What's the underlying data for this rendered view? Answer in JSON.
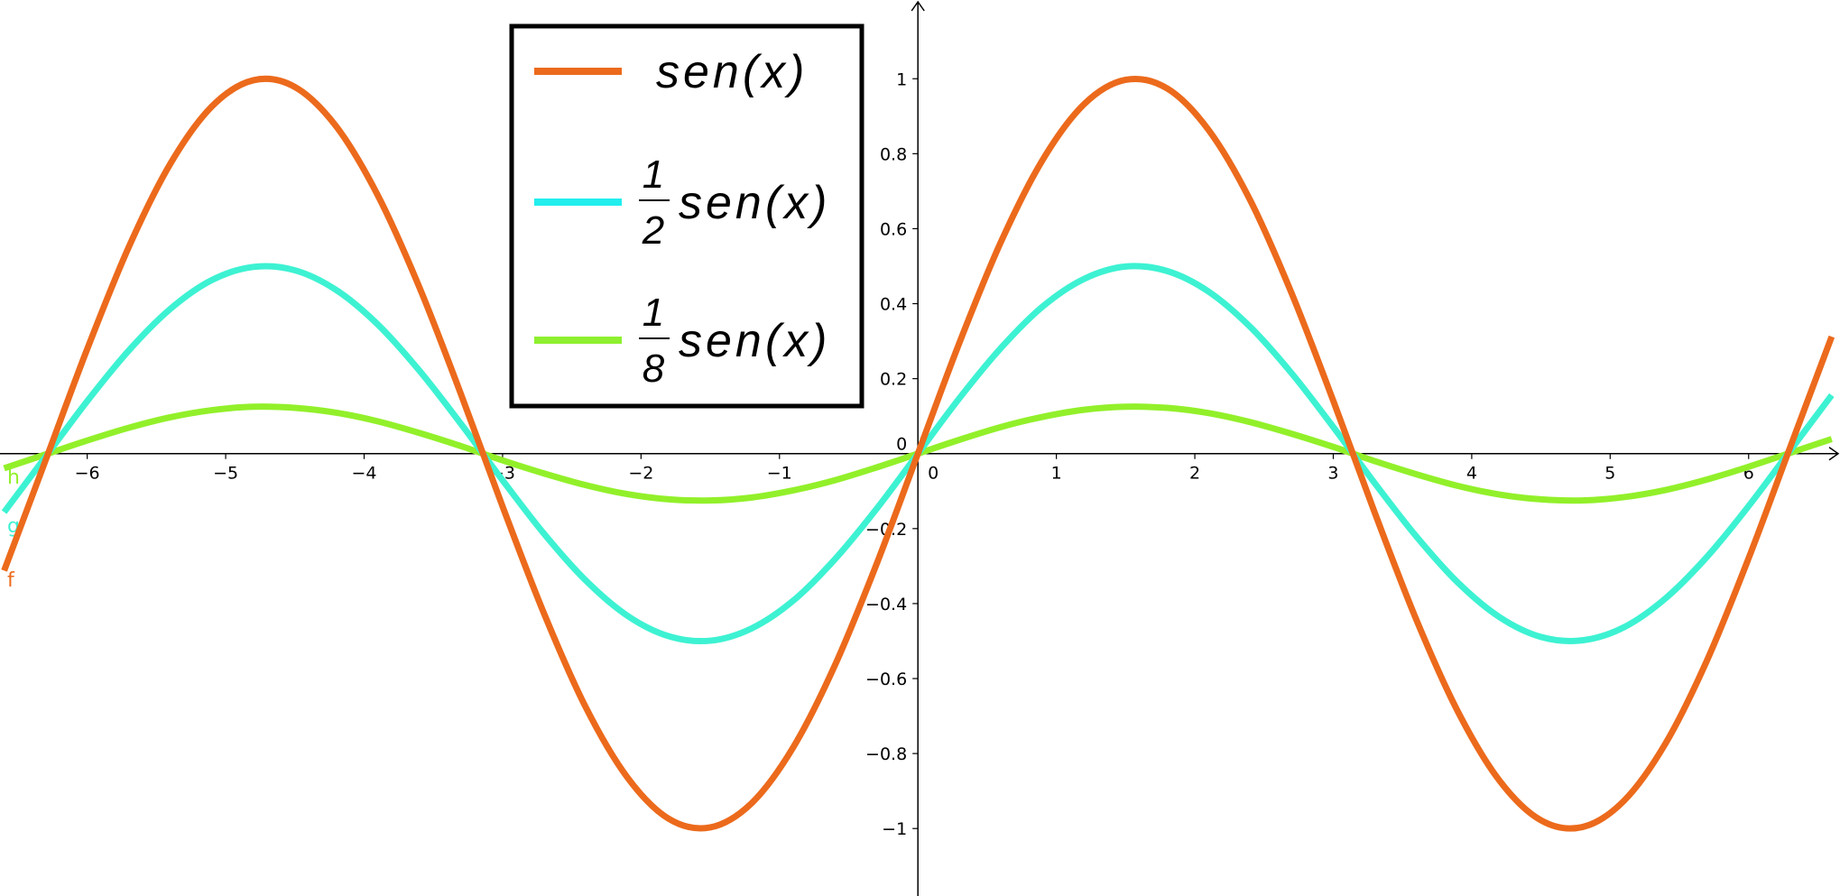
{
  "chart_data": {
    "type": "line",
    "x": [
      -6.6,
      -6.3,
      -6,
      -5.7,
      -5.4,
      -5.1,
      -4.8,
      -4.5,
      -4.2,
      -3.9,
      -3.6,
      -3.3,
      -3,
      -2.7,
      -2.4,
      -2.1,
      -1.8,
      -1.5,
      -1.2,
      -0.9,
      -0.6,
      -0.3,
      0,
      0.3,
      0.6,
      0.9,
      1.2,
      1.5,
      1.8,
      2.1,
      2.4,
      2.7,
      3,
      3.3,
      3.6,
      3.9,
      4.2,
      4.5,
      4.8,
      5.1,
      5.4,
      5.7,
      6,
      6.3,
      6.6
    ],
    "series": [
      {
        "name": "sen(x)",
        "label": "f",
        "color": "#ec6a1c",
        "values": [
          -0.312,
          -0.017,
          0.279,
          0.551,
          0.773,
          0.926,
          0.996,
          0.978,
          0.872,
          0.688,
          0.443,
          0.158,
          -0.141,
          -0.427,
          -0.676,
          -0.863,
          -0.974,
          -0.997,
          -0.932,
          -0.783,
          -0.565,
          -0.296,
          0,
          0.296,
          0.565,
          0.783,
          0.932,
          0.997,
          0.974,
          0.863,
          0.676,
          0.427,
          0.141,
          -0.158,
          -0.443,
          -0.688,
          -0.872,
          -0.978,
          -0.996,
          -0.926,
          -0.773,
          -0.551,
          -0.279,
          0.017,
          0.312
        ]
      },
      {
        "name": "sen(x)",
        "coefficient": {
          "numerator": "1",
          "denominator": "2"
        },
        "label": "g",
        "color": "#3df2d2",
        "values": [
          -0.156,
          -0.008,
          0.14,
          0.275,
          0.386,
          0.463,
          0.498,
          0.489,
          0.436,
          0.344,
          0.221,
          0.079,
          -0.071,
          -0.214,
          -0.338,
          -0.432,
          -0.487,
          -0.499,
          -0.466,
          -0.392,
          -0.282,
          -0.148,
          0,
          0.148,
          0.282,
          0.392,
          0.466,
          0.499,
          0.487,
          0.432,
          0.338,
          0.214,
          0.071,
          -0.079,
          -0.221,
          -0.344,
          -0.436,
          -0.489,
          -0.498,
          -0.463,
          -0.386,
          -0.275,
          -0.14,
          0.008,
          0.156
        ]
      },
      {
        "name": "sen(x)",
        "coefficient": {
          "numerator": "1",
          "denominator": "8"
        },
        "label": "h",
        "color": "#92f02a",
        "values": [
          -0.039,
          -0.002,
          0.035,
          0.069,
          0.097,
          0.116,
          0.125,
          0.122,
          0.109,
          0.086,
          0.055,
          0.02,
          -0.018,
          -0.053,
          -0.084,
          -0.108,
          -0.122,
          -0.125,
          -0.117,
          -0.098,
          -0.071,
          -0.037,
          0,
          0.037,
          0.071,
          0.098,
          0.117,
          0.125,
          0.122,
          0.108,
          0.084,
          0.053,
          0.018,
          -0.02,
          -0.055,
          -0.086,
          -0.109,
          -0.122,
          -0.125,
          -0.116,
          -0.097,
          -0.069,
          -0.035,
          0.002,
          0.039
        ]
      }
    ],
    "legend_colors": [
      "#ec6a1c",
      "#22eeee",
      "#8ef030"
    ],
    "xlim": [
      -6.63,
      6.66
    ],
    "ylim": [
      -1.18,
      1.21
    ],
    "xticks": [
      {
        "value": -6,
        "label": "−6"
      },
      {
        "value": -5,
        "label": "−5"
      },
      {
        "value": -4,
        "label": "−4"
      },
      {
        "value": -3,
        "label": "−3"
      },
      {
        "value": -2,
        "label": "−2"
      },
      {
        "value": -1,
        "label": "−1"
      },
      0,
      1,
      2,
      3,
      4,
      5,
      6
    ],
    "yticks": [
      1,
      0.8,
      0.6,
      0.4,
      0.2,
      0,
      {
        "value": -0.2,
        "label": "−0.2"
      },
      {
        "value": -0.4,
        "label": "−0.4"
      },
      {
        "value": -0.6,
        "label": "−0.6"
      },
      {
        "value": -0.8,
        "label": "−0.8"
      },
      {
        "value": -1,
        "label": "−1"
      }
    ],
    "grid": false
  }
}
